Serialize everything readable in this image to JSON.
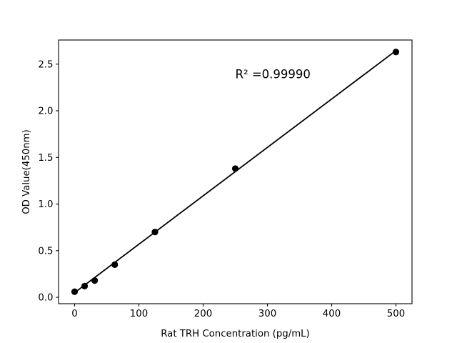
{
  "chart_data": {
    "type": "scatter",
    "title": "",
    "xlabel": "Rat TRH Concentration (pg/mL)",
    "ylabel": "OD Value(450nm)",
    "x": [
      0,
      15.6,
      31.25,
      62.5,
      125,
      250,
      500
    ],
    "y": [
      0.06,
      0.12,
      0.18,
      0.35,
      0.7,
      1.38,
      2.63
    ],
    "trend": {
      "x": [
        0,
        500
      ],
      "y": [
        0.05,
        2.645
      ]
    },
    "annotation": {
      "text": "R² =0.99990",
      "x": 250,
      "y": 2.35
    },
    "x_ticks": [
      0,
      100,
      200,
      300,
      400,
      500
    ],
    "x_tick_labels": [
      "0",
      "100",
      "200",
      "300",
      "400",
      "500"
    ],
    "y_ticks": [
      0.0,
      0.5,
      1.0,
      1.5,
      2.0,
      2.5
    ],
    "y_tick_labels": [
      "0.0",
      "0.5",
      "1.0",
      "1.5",
      "2.0",
      "2.5"
    ],
    "xlim": [
      -25,
      525
    ],
    "ylim": [
      -0.0685,
      2.7585
    ],
    "grid": false,
    "legend": null,
    "marker_color": "#000000",
    "line_color": "#000000",
    "frame_color": "#000000",
    "background": "#ffffff"
  }
}
